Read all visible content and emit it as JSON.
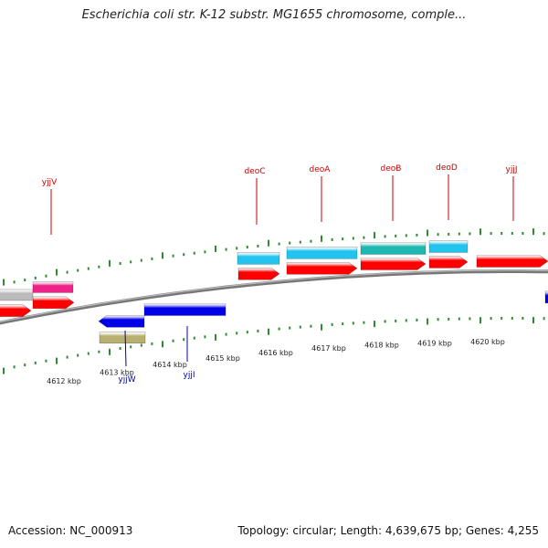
{
  "title": "Escherichia coli str. K-12 substr. MG1655 chromosome, comple...",
  "footer": {
    "accession": "Accession: NC_000913",
    "summary": "Topology: circular; Length: 4,639,675 bp; Genes: 4,255"
  },
  "colors": {
    "backbone": "#777777",
    "tick": "#2e8b2e",
    "forward_gene": "#ff0000",
    "reverse_gene": "#0000e6",
    "forward_label": "#cc0000",
    "reverse_label": "#0000aa",
    "feature_cyan": "#22c4ee",
    "feature_teal": "#1fb8b0",
    "feature_grey": "#bbbbbb",
    "feature_magenta": "#ee2288",
    "feature_khaki": "#b8b070"
  },
  "scale": {
    "unit": "kbp",
    "ticks": [
      "4612 kbp",
      "4613 kbp",
      "4614 kbp",
      "4615 kbp",
      "4616 kbp",
      "4617 kbp",
      "4618 kbp",
      "4619 kbp",
      "4620 kbp"
    ]
  },
  "genes": {
    "forward": [
      "yjjV",
      "deoC",
      "deoA",
      "deoB",
      "deoD",
      "yjjJ"
    ],
    "reverse": [
      "yjjW",
      "yjjI"
    ]
  }
}
